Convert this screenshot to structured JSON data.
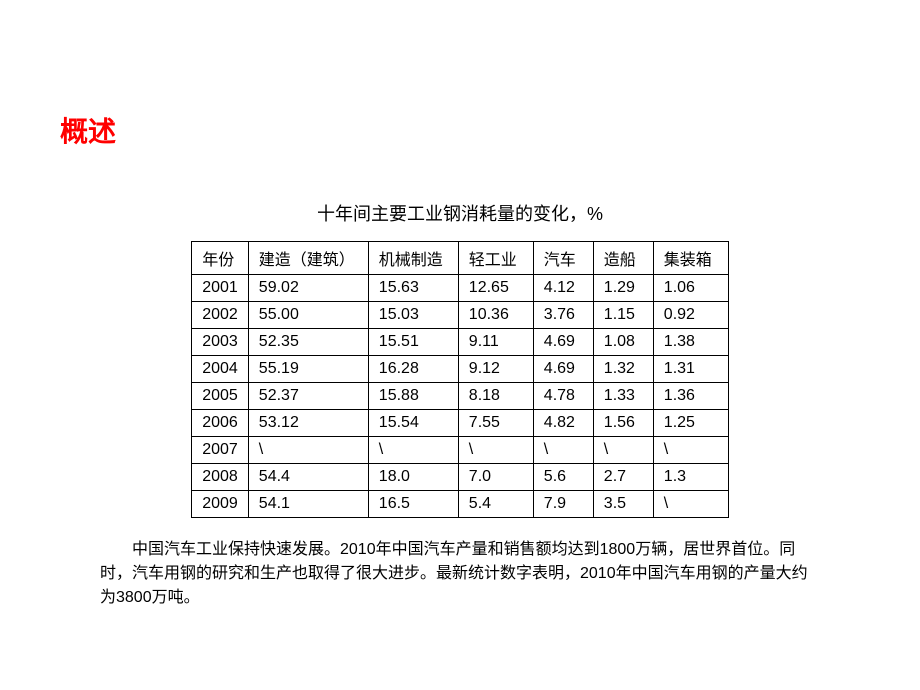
{
  "heading": "概述",
  "table_title": "十年间主要工业钢消耗量的变化，%",
  "columns": [
    "年份",
    "建造（建筑）",
    "机械制造",
    "轻工业",
    "汽车",
    "造船",
    "集装箱"
  ],
  "rows": [
    [
      "2001",
      "59.02",
      "15.63",
      "12.65",
      "4.12",
      "1.29",
      "1.06"
    ],
    [
      "2002",
      "55.00",
      "15.03",
      "10.36",
      "3.76",
      "1.15",
      "0.92"
    ],
    [
      "2003",
      "52.35",
      "15.51",
      "9.11",
      "4.69",
      "1.08",
      "1.38"
    ],
    [
      "2004",
      "55.19",
      "16.28",
      "9.12",
      "4.69",
      "1.32",
      "1.31"
    ],
    [
      "2005",
      "52.37",
      "15.88",
      "8.18",
      "4.78",
      "1.33",
      "1.36"
    ],
    [
      "2006",
      "53.12",
      "15.54",
      "7.55",
      "4.82",
      "1.56",
      "1.25"
    ],
    [
      "2007",
      "\\",
      "\\",
      "\\",
      "\\",
      "\\",
      "\\"
    ],
    [
      "2008",
      "54.4",
      "18.0",
      "7.0",
      "5.6",
      "2.7",
      "1.3"
    ],
    [
      "2009",
      "54.1",
      "16.5",
      "5.4",
      "7.9",
      "3.5",
      "\\"
    ]
  ],
  "body_text": "中国汽车工业保持快速发展。2010年中国汽车产量和销售额均达到1800万辆，居世界首位。同时，汽车用钢的研究和生产也取得了很大进步。最新统计数字表明，2010年中国汽车用钢的产量大约为3800万吨。",
  "colors": {
    "heading": "#ff0000",
    "text": "#000000",
    "border": "#000000",
    "background": "#ffffff"
  },
  "font_sizes": {
    "heading": 28,
    "table_title": 18,
    "table_cell": 16,
    "body": 16
  }
}
